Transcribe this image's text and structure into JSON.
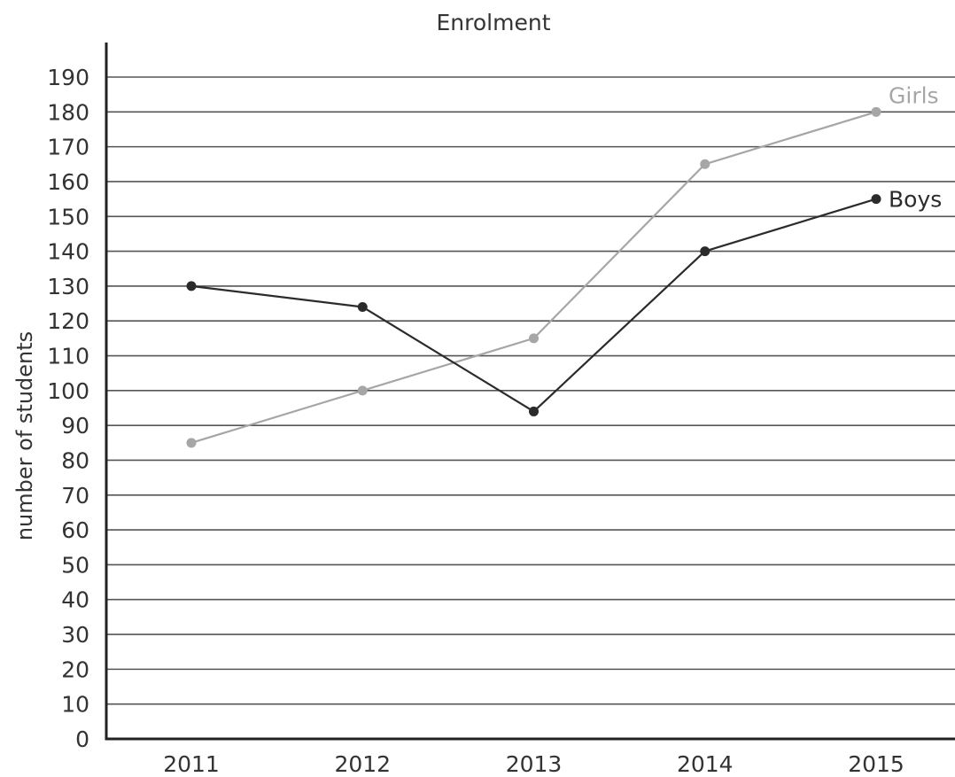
{
  "chart_data": {
    "type": "line",
    "title": "Enrolment",
    "xlabel": "",
    "ylabel": "number of students",
    "categories": [
      "2011",
      "2012",
      "2013",
      "2014",
      "2015"
    ],
    "ylim": [
      0,
      190
    ],
    "yticks": [
      0,
      10,
      20,
      30,
      40,
      50,
      60,
      70,
      80,
      90,
      100,
      110,
      120,
      130,
      140,
      150,
      160,
      170,
      180,
      190
    ],
    "grid": true,
    "legend": "inline labels at end of lines",
    "series": [
      {
        "name": "Girls",
        "values": [
          85,
          100,
          115,
          165,
          180
        ],
        "color": "#a6a6a6"
      },
      {
        "name": "Boys",
        "values": [
          130,
          124,
          94,
          140,
          155
        ],
        "color": "#2b2b2b"
      }
    ]
  },
  "colors": {
    "axis": "#222222",
    "grid": "#555555",
    "text": "#333333"
  }
}
